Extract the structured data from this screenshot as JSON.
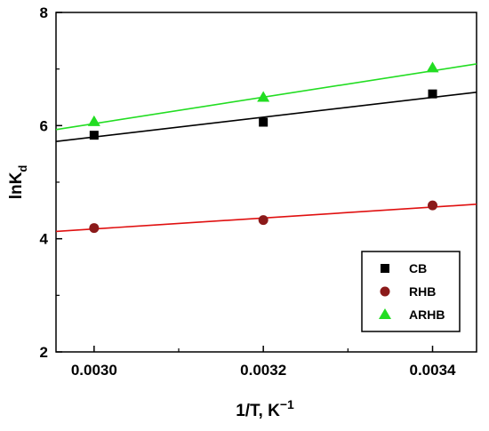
{
  "chart_data": {
    "type": "scatter",
    "xlabel": "1/T, K",
    "xlabel_superscript": "−1",
    "ylabel": "lnK",
    "ylabel_subscript": "d",
    "xlim": [
      0.002955,
      0.003452
    ],
    "ylim": [
      2.0,
      8.0
    ],
    "x_ticks": [
      0.003,
      0.0032,
      0.0034
    ],
    "x_tick_labels": [
      "0.0030",
      "0.0032",
      "0.0034"
    ],
    "y_ticks": [
      2,
      4,
      6,
      8
    ],
    "y_tick_labels": [
      "2",
      "4",
      "6",
      "8"
    ],
    "grid": false,
    "legend_position": "bottom-right",
    "series": [
      {
        "name": "CB",
        "marker": "square",
        "color": "#000000",
        "line_color": "#000000",
        "x": [
          0.003,
          0.0032,
          0.0034
        ],
        "y": [
          5.83,
          6.06,
          6.56
        ],
        "fit": {
          "x": [
            0.002955,
            0.003452
          ],
          "y": [
            5.72,
            6.59
          ]
        }
      },
      {
        "name": "RHB",
        "marker": "circle",
        "color": "#8B1A1A",
        "line_color": "#e01010",
        "x": [
          0.003,
          0.0032,
          0.0034
        ],
        "y": [
          4.19,
          4.33,
          4.59
        ],
        "fit": {
          "x": [
            0.002955,
            0.003452
          ],
          "y": [
            4.13,
            4.61
          ]
        }
      },
      {
        "name": "ARHB",
        "marker": "triangle",
        "color": "#22dd22",
        "line_color": "#22dd22",
        "x": [
          0.003,
          0.0032,
          0.0034
        ],
        "y": [
          6.07,
          6.5,
          7.02
        ],
        "fit": {
          "x": [
            0.002955,
            0.003452
          ],
          "y": [
            5.93,
            7.09
          ]
        }
      }
    ]
  }
}
